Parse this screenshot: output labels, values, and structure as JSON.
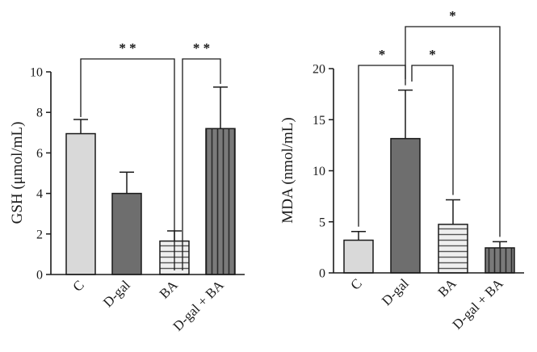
{
  "chart_data": [
    {
      "type": "bar",
      "categories": [
        "C",
        "D-gal",
        "BA",
        "D-gal + BA"
      ],
      "values": [
        6.95,
        4.0,
        1.65,
        7.2
      ],
      "errors": [
        0.7,
        1.05,
        0.5,
        2.05
      ],
      "fills": [
        "#d9d9d9",
        "#6e6e6e",
        "hlines",
        "vlines"
      ],
      "ylabel": "GSH (μmol/mL)",
      "xlabel": "",
      "ylim": [
        0,
        10
      ],
      "yticks": [
        0,
        2,
        4,
        6,
        8,
        10
      ],
      "tick_labels": [
        "0",
        "2",
        "4",
        "6",
        "8",
        "10"
      ],
      "significance": [
        {
          "from": "C",
          "to": "BA",
          "label": "* *"
        },
        {
          "from": "BA",
          "to": "D-gal + BA",
          "label": "* *"
        }
      ]
    },
    {
      "type": "bar",
      "categories": [
        "C",
        "D-gal",
        "BA",
        "D-gal + BA"
      ],
      "values": [
        3.2,
        13.15,
        4.75,
        2.45
      ],
      "errors": [
        0.85,
        4.75,
        2.4,
        0.6
      ],
      "fills": [
        "#d9d9d9",
        "#6e6e6e",
        "hlines",
        "vlines"
      ],
      "ylabel": "MDA (nmol/mL)",
      "xlabel": "",
      "ylim": [
        0,
        20
      ],
      "yticks": [
        0,
        5,
        10,
        15,
        20
      ],
      "tick_labels": [
        "0",
        "5",
        "10",
        "15",
        "20"
      ],
      "significance": [
        {
          "from": "C",
          "to": "D-gal",
          "label": "*"
        },
        {
          "from": "D-gal",
          "to": "BA",
          "label": "*"
        },
        {
          "from": "D-gal",
          "to": "D-gal + BA",
          "label": "*"
        }
      ]
    }
  ]
}
